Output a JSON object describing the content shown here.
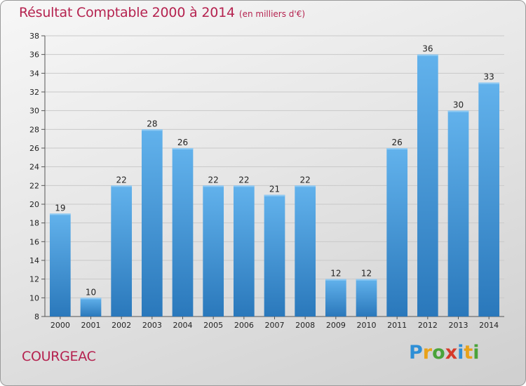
{
  "header": {
    "title": "Résultat Comptable 2000 à 2014",
    "unit": "(en milliers d'€)"
  },
  "footer": {
    "town": "COURGEAC",
    "logo_letters": [
      "P",
      "r",
      "o",
      "x",
      "i",
      "t",
      "i"
    ],
    "logo_colors": [
      "#2e8fd6",
      "#e8a21a",
      "#4aa33a",
      "#d63a2a",
      "#2e8fd6",
      "#e8a21a",
      "#4aa33a"
    ]
  },
  "chart_data": {
    "type": "bar",
    "categories": [
      "2000",
      "2001",
      "2002",
      "2003",
      "2004",
      "2005",
      "2006",
      "2007",
      "2008",
      "2009",
      "2010",
      "2011",
      "2012",
      "2013",
      "2014"
    ],
    "values": [
      19,
      10,
      22,
      28,
      26,
      22,
      22,
      21,
      22,
      12,
      12,
      26,
      36,
      30,
      33
    ],
    "value_labels": [
      "19",
      "10",
      "22",
      "28",
      "26",
      "22",
      "22",
      "21",
      "22",
      "12",
      "12",
      "26",
      "36",
      "30",
      "33"
    ],
    "yticks": [
      "8",
      "10",
      "12",
      "14",
      "16",
      "18",
      "20",
      "22",
      "24",
      "26",
      "28",
      "30",
      "32",
      "34",
      "36",
      "38"
    ],
    "ylim": [
      8,
      38
    ],
    "ytick_step": 2,
    "grid": true,
    "bar_color_top": "#62b2ec",
    "bar_color_bottom": "#2a78bb"
  }
}
